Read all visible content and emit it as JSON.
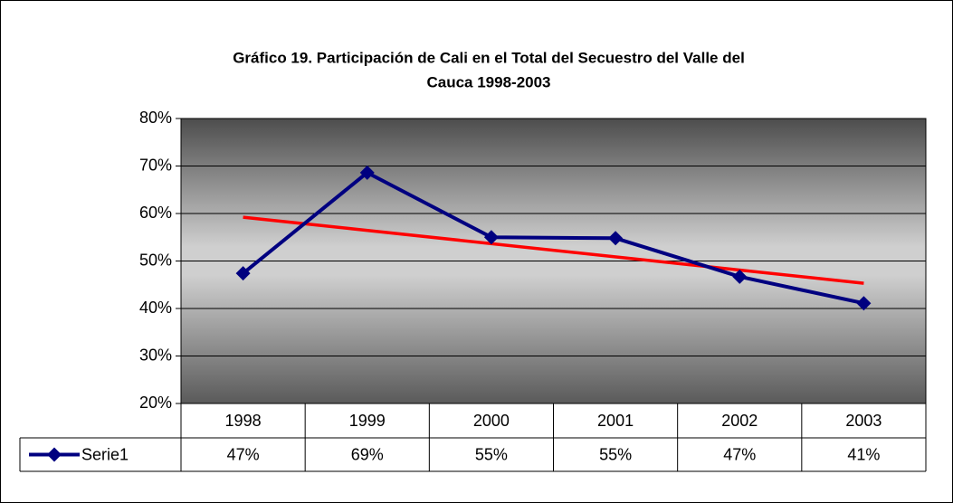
{
  "chart_data": {
    "type": "line",
    "title": [
      "Gráfico 19. Participación de Cali en el Total del Secuestro del Valle del",
      "Cauca 1998-2003"
    ],
    "categories": [
      "1998",
      "1999",
      "2000",
      "2001",
      "2002",
      "2003"
    ],
    "series": [
      {
        "name": "Serie1",
        "color": "#000080",
        "values": [
          47.4,
          68.6,
          55.0,
          54.8,
          46.7,
          41.1
        ],
        "value_labels": [
          "47%",
          "69%",
          "55%",
          "55%",
          "47%",
          "41%"
        ]
      }
    ],
    "trendline": {
      "type": "linear",
      "color": "#ff0000"
    },
    "ylim": [
      20,
      80
    ],
    "yticks": [
      {
        "value": 20,
        "label": "20%"
      },
      {
        "value": 30,
        "label": "30%"
      },
      {
        "value": 40,
        "label": "40%"
      },
      {
        "value": 50,
        "label": "50%"
      },
      {
        "value": 60,
        "label": "60%"
      },
      {
        "value": 70,
        "label": "70%"
      },
      {
        "value": 80,
        "label": "80%"
      }
    ],
    "grid": true
  }
}
